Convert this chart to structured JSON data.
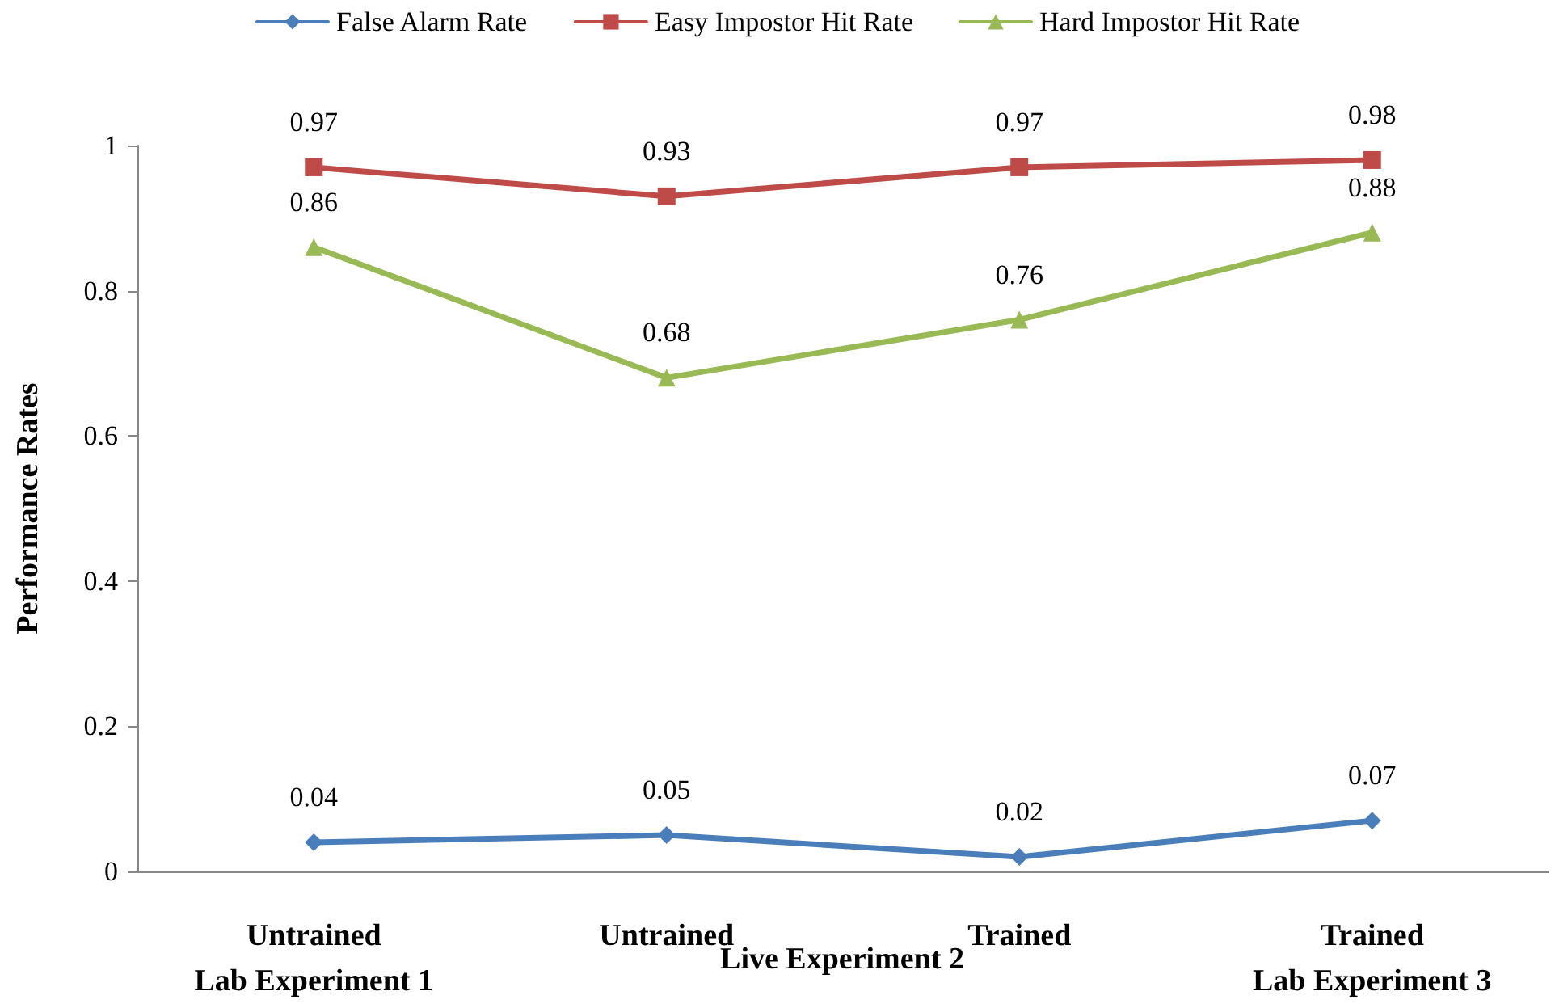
{
  "chart_data": {
    "type": "line",
    "ylabel": "Performance Rates",
    "categories": [
      "Untrained\nLab Experiment 1",
      "Untrained",
      "Trained",
      "Trained\nLab Experiment 3"
    ],
    "series": [
      {
        "name": "False Alarm Rate",
        "color": "#4a7ebb",
        "marker": "diamond",
        "values": [
          0.04,
          0.05,
          0.02,
          0.07
        ]
      },
      {
        "name": "Easy Impostor Hit Rate",
        "color": "#be4b48",
        "marker": "square",
        "values": [
          0.97,
          0.93,
          0.97,
          0.98
        ]
      },
      {
        "name": "Hard Impostor Hit Rate",
        "color": "#98b954",
        "marker": "triangle",
        "values": [
          0.86,
          0.68,
          0.76,
          0.88
        ]
      }
    ],
    "ylim": [
      0,
      1
    ],
    "yticks": [
      0,
      0.2,
      0.4,
      0.6,
      0.8,
      1
    ],
    "annotations": [
      "Live Experiment 2"
    ],
    "data_labels": true,
    "grid": false,
    "legend": "top",
    "line_style": "solid"
  }
}
